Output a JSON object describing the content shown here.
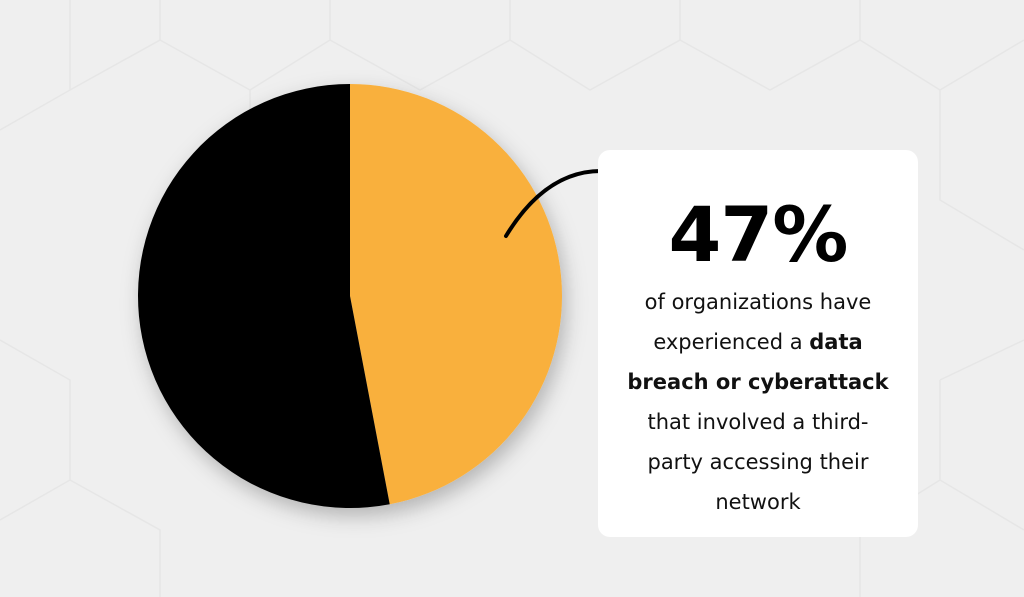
{
  "chart_data": {
    "type": "pie",
    "values": [
      47,
      53
    ],
    "value_labels": [
      "47%",
      null
    ],
    "colors": [
      "#f9b03c",
      "#000000"
    ],
    "description": {
      "before": "of organizations have experienced a ",
      "bold": "data breach or cyberattack",
      "after": " that involved a third-party accessing their network"
    }
  }
}
